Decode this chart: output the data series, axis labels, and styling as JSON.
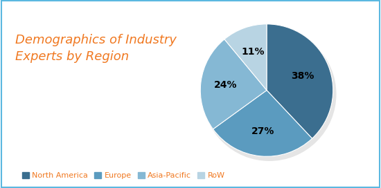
{
  "title": "Demographics of Industry\nExperts by Region",
  "title_color": "#F07820",
  "title_fontsize": 13,
  "slices": [
    38,
    27,
    24,
    11
  ],
  "labels": [
    "North America",
    "Europe",
    "Asia-Pacific",
    "RoW"
  ],
  "colors": [
    "#3B6E8F",
    "#5B9BBF",
    "#85B8D4",
    "#B8D4E3"
  ],
  "pct_labels": [
    "38%",
    "27%",
    "24%",
    "11%"
  ],
  "legend_text_color": "#F07820",
  "background_color": "#FFFFFF",
  "start_angle": 90,
  "border_color": "#5BB8E0"
}
